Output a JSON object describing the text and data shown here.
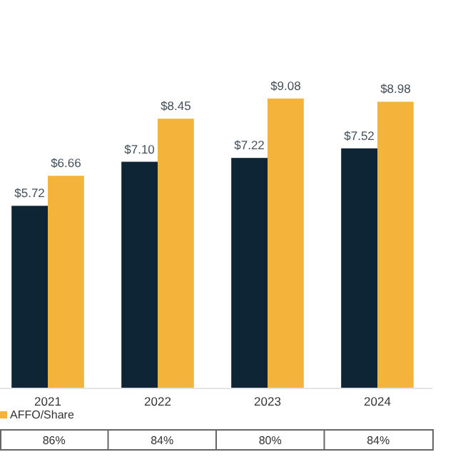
{
  "chart_data": {
    "type": "bar",
    "categories": [
      "2021",
      "2022",
      "2023",
      "2024"
    ],
    "series": [
      {
        "color": "#0d2535",
        "values": [
          5.72,
          7.1,
          7.22,
          7.52
        ],
        "value_labels": [
          "$5.72",
          "$7.10",
          "$7.22",
          "$7.52"
        ]
      },
      {
        "name": "AFFO/Share",
        "color": "#f4b43b",
        "values": [
          6.66,
          8.45,
          9.08,
          8.98
        ],
        "value_labels": [
          "$6.66",
          "$8.45",
          "$9.08",
          "$8.98"
        ]
      }
    ],
    "tick_labels": "x",
    "legend": "bottom left",
    "annotations": [
      "86%",
      "84%",
      "80%",
      "84%"
    ]
  }
}
